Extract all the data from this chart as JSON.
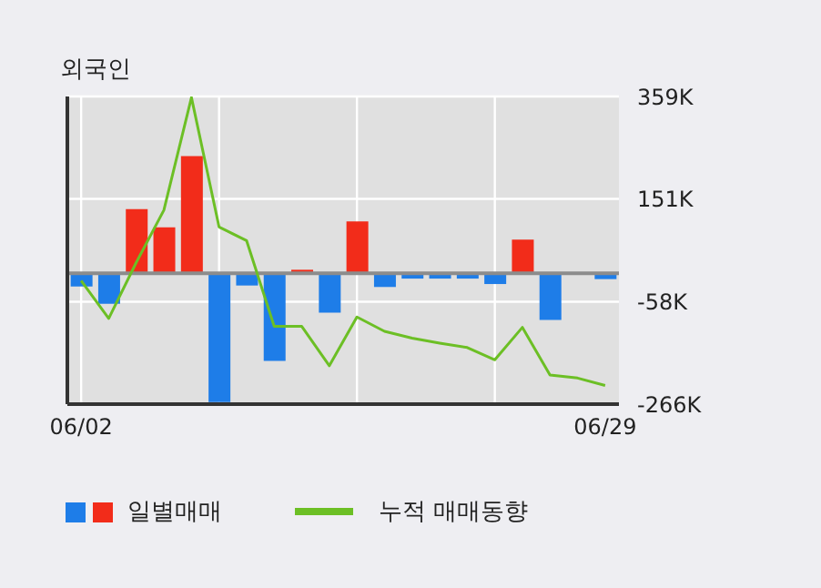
{
  "chart_data": {
    "type": "bar",
    "title": "외국인",
    "categories": [
      "06/02",
      null,
      null,
      null,
      null,
      null,
      null,
      null,
      null,
      null,
      null,
      null,
      null,
      null,
      null,
      null,
      null,
      null,
      null,
      "06/29"
    ],
    "series": [
      {
        "name": "일별매매",
        "colors": [
          "#1e7de8",
          "#1e7de8",
          "#f22c1a",
          "#f22c1a",
          "#f22c1a",
          "#1e7de8",
          "#1e7de8",
          "#1e7de8",
          "#f22c1a",
          "#1e7de8",
          "#f22c1a",
          "#1e7de8",
          "#1e7de8",
          "#1e7de8",
          "#1e7de8",
          "#1e7de8",
          "#f22c1a",
          "#1e7de8",
          "#1e7de8",
          "#1e7de8"
        ],
        "values": [
          -27000,
          -62000,
          130000,
          93000,
          238000,
          -262000,
          -25000,
          -178000,
          7000,
          -80000,
          105000,
          -28000,
          -11000,
          -11000,
          -11000,
          -22000,
          68000,
          -95000,
          null,
          -12000
        ]
      },
      {
        "name": "누적 매매동향",
        "type": "line",
        "color": "#6cbf25",
        "values": [
          -15000,
          -92000,
          22000,
          128000,
          357000,
          94000,
          66000,
          -108000,
          -108000,
          -188000,
          -89000,
          -118000,
          -132000,
          -142000,
          -151000,
          -176000,
          -110000,
          -207000,
          -213000,
          -228000
        ]
      }
    ],
    "ylim": [
      -266000,
      359000
    ],
    "yticks": [
      {
        "value": 359000,
        "label": "359K"
      },
      {
        "value": 151000,
        "label": "151K"
      },
      {
        "value": -58000,
        "label": "-58K"
      },
      {
        "value": -266000,
        "label": "-266K"
      }
    ],
    "grid": true,
    "legend": "bottom",
    "marker": "none",
    "line_style": "solid",
    "ref_lines": [
      {
        "axis": "y",
        "value": 0,
        "color": "#8c8c8c"
      }
    ]
  }
}
